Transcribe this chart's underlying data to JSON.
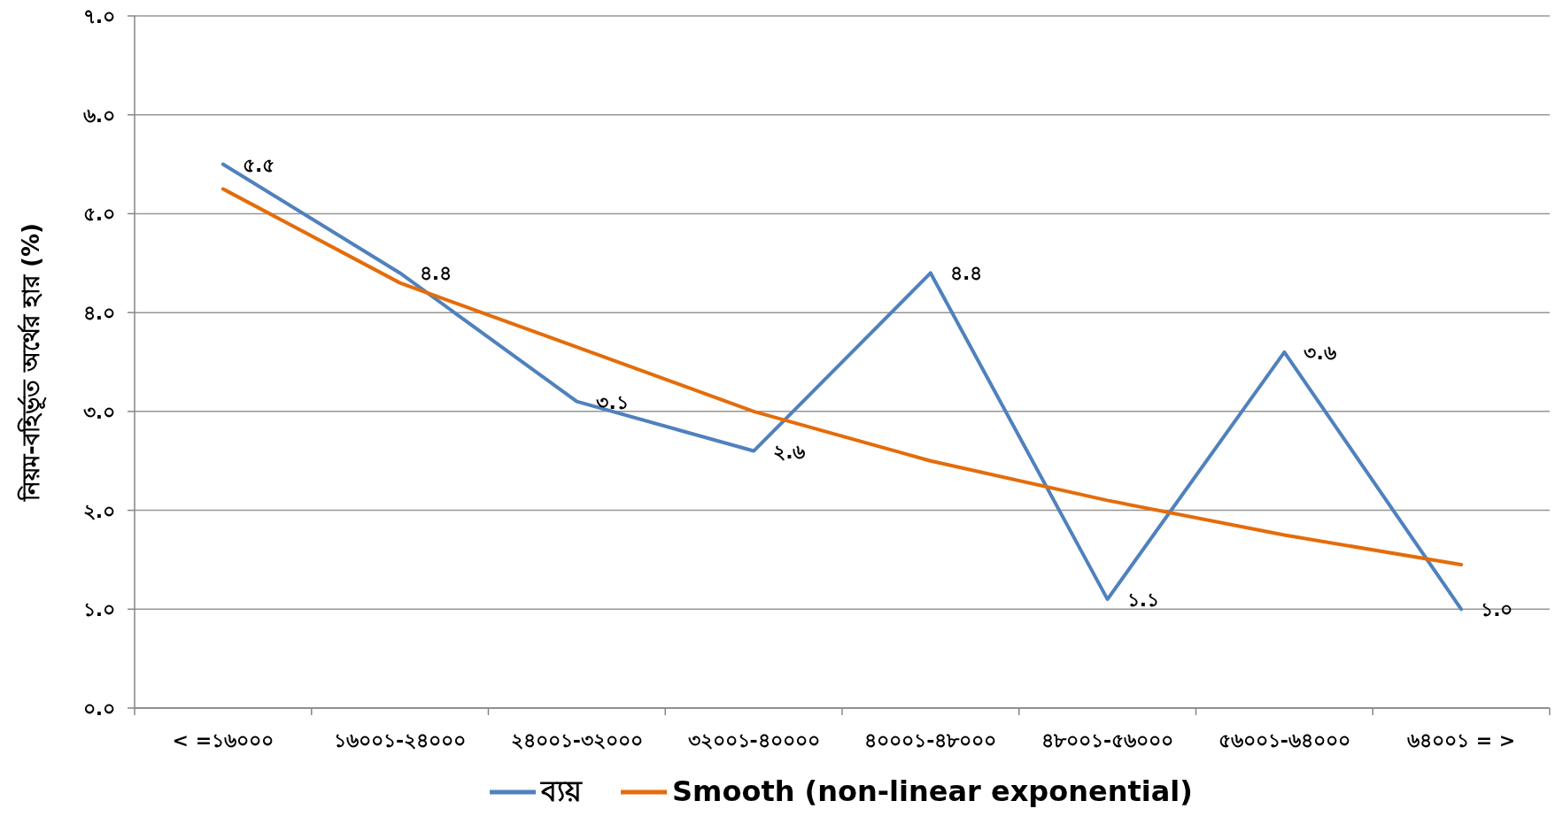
{
  "chart_data": {
    "type": "line",
    "ylabel": "নিয়ম-বহির্ভূত অর্থের হার (%)",
    "categories": [
      "< =১৬০০০",
      "১৬০০১-২৪০০০",
      "২৪০০১-৩২০০০",
      "৩২০০১-৪০০০০",
      "৪০০০১-৪৮০০০",
      "৪৮০০১-৫৬০০০",
      "৫৬০০১-৬৪০০০",
      "৬৪০০১ = >"
    ],
    "series": [
      {
        "name": "ব্যয়",
        "color": "#4f81bd",
        "values": [
          5.5,
          4.4,
          3.1,
          2.6,
          4.4,
          1.1,
          3.6,
          1.0
        ],
        "value_labels": [
          "৫.৫",
          "৪.৪",
          "৩.১",
          "২.৬",
          "৪.৪",
          "১.১",
          "৩.৬",
          "১.০"
        ]
      },
      {
        "name": "Smooth (non-linear exponential)",
        "color": "#e46c0a",
        "values": [
          5.25,
          4.3,
          3.65,
          3.0,
          2.5,
          2.1,
          1.75,
          1.45
        ]
      }
    ],
    "ylim": [
      0,
      7
    ],
    "yticks": [
      {
        "value": 0,
        "label": "০.০"
      },
      {
        "value": 1,
        "label": "১.০"
      },
      {
        "value": 2,
        "label": "২.০"
      },
      {
        "value": 3,
        "label": "৩.০"
      },
      {
        "value": 4,
        "label": "৪.০"
      },
      {
        "value": 5,
        "label": "৫.০"
      },
      {
        "value": 6,
        "label": "৬.০"
      },
      {
        "value": 7,
        "label": "৭.০"
      }
    ],
    "grid": "y",
    "legend": "bottom",
    "marker": "none",
    "line_style": "solid"
  }
}
